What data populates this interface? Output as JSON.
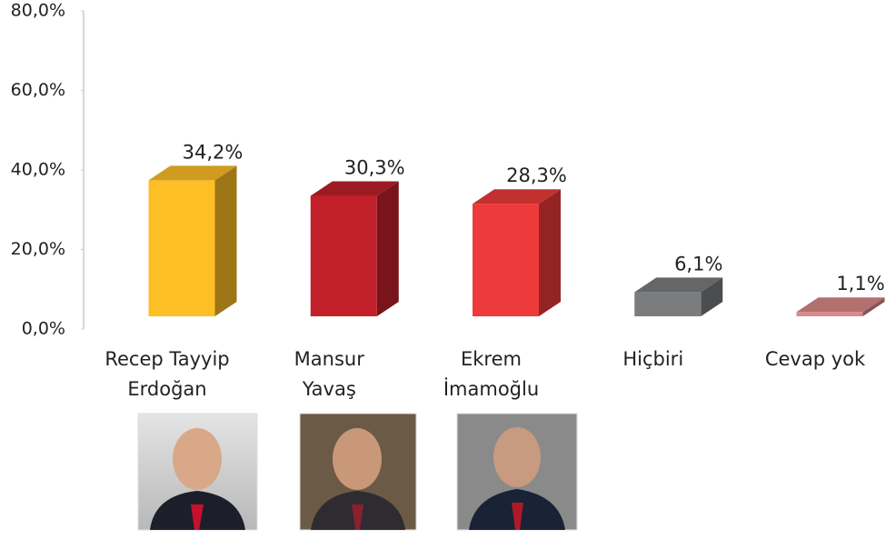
{
  "chart_data": {
    "type": "bar3d",
    "categories": [
      [
        "Recep Tayyip",
        "Erdoğan"
      ],
      [
        "Mansur",
        "Yavaş"
      ],
      [
        "Ekrem",
        "İmamoğlu"
      ],
      [
        "Hiçbiri"
      ],
      [
        "Cevap yok"
      ]
    ],
    "values": [
      34.2,
      30.3,
      28.3,
      6.1,
      1.1
    ],
    "value_labels": [
      "34,2%",
      "30,3%",
      "28,3%",
      "6,1%",
      "1,1%"
    ],
    "colors": [
      "#fdbe26",
      "#c1202a",
      "#ee3a3a",
      "#7a7c7e",
      "#d9898a"
    ],
    "ylim": [
      0,
      80
    ],
    "yticks": [
      {
        "value": 0,
        "label": "0,0%"
      },
      {
        "value": 20,
        "label": "20,0%"
      },
      {
        "value": 40,
        "label": "40,0%"
      },
      {
        "value": 60,
        "label": "60,0%"
      },
      {
        "value": 80,
        "label": "80,0%"
      }
    ]
  }
}
